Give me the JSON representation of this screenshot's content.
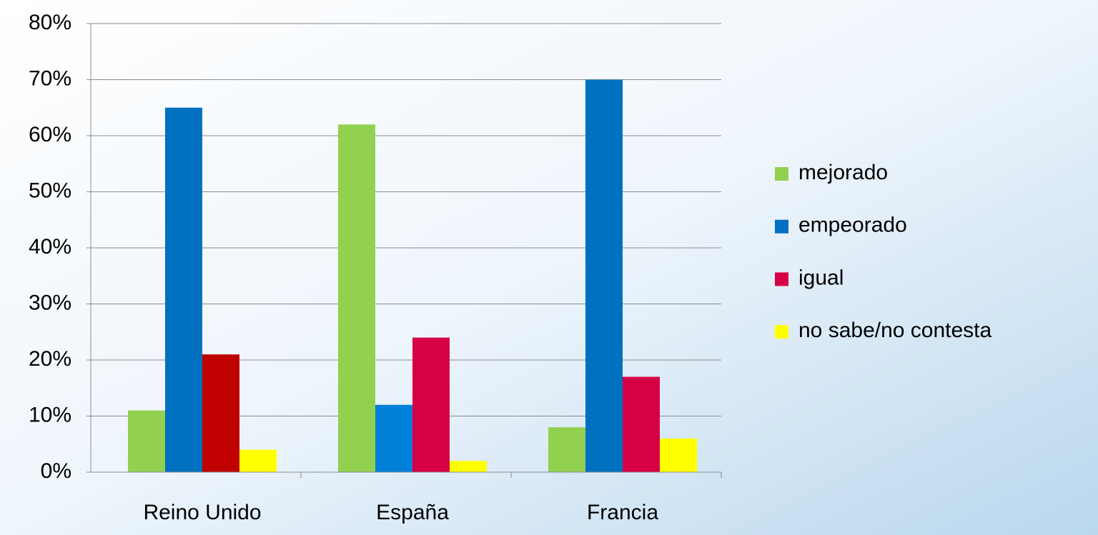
{
  "chart_data": {
    "type": "bar",
    "categories": [
      "Reino Unido",
      "España",
      "Francia"
    ],
    "series": [
      {
        "name": "mejorado",
        "color": "#92d050",
        "colors": [
          "#92d050",
          "#92d050",
          "#92d050"
        ],
        "values": [
          11,
          62,
          8
        ]
      },
      {
        "name": "empeorado",
        "color": "#0070c0",
        "colors": [
          "#0070c0",
          "#0080d8",
          "#0070c0"
        ],
        "values": [
          65,
          12,
          70
        ]
      },
      {
        "name": "igual",
        "color": "#d60045",
        "colors": [
          "#c00000",
          "#d60045",
          "#d60045"
        ],
        "values": [
          21,
          24,
          17
        ]
      },
      {
        "name": "no sabe/no contesta",
        "color": "#ffff00",
        "colors": [
          "#ffff00",
          "#ffff00",
          "#ffff00"
        ],
        "values": [
          4,
          2,
          6
        ]
      }
    ],
    "ylim": [
      0,
      80
    ],
    "yticks": [
      {
        "value": 0,
        "label": "0%"
      },
      {
        "value": 10,
        "label": "10%"
      },
      {
        "value": 20,
        "label": "20%"
      },
      {
        "value": 30,
        "label": "30%"
      },
      {
        "value": 40,
        "label": "40%"
      },
      {
        "value": 50,
        "label": "50%"
      },
      {
        "value": 60,
        "label": "60%"
      },
      {
        "value": 70,
        "label": "70%"
      },
      {
        "value": 80,
        "label": "80%"
      }
    ],
    "grid": true,
    "legend": "right"
  }
}
